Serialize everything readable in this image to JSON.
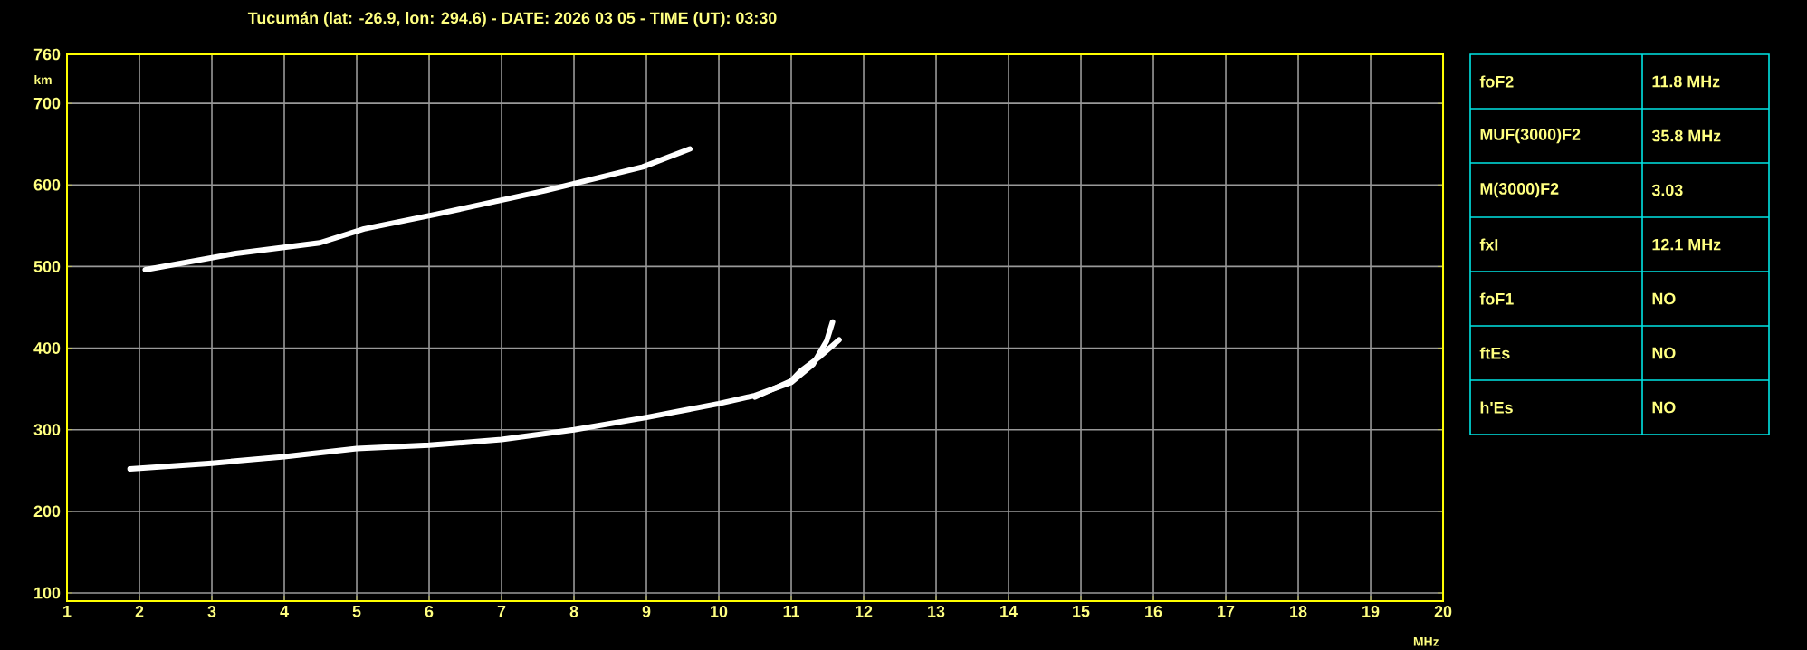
{
  "chart_data": [
    {
      "type": "line",
      "title": "Tucumán (lat: -26.9, lon: 294.6) - DATE: 2026 03 05 - TIME (UT): 03:30",
      "xlabel": "MHz",
      "ylabel": "km",
      "xlim": [
        1,
        20
      ],
      "ylim": [
        90,
        760
      ],
      "xticks": [
        1,
        2,
        3,
        4,
        5,
        6,
        7,
        8,
        9,
        10,
        11,
        12,
        13,
        14,
        15,
        16,
        17,
        18,
        19,
        20
      ],
      "yticks": [
        100,
        200,
        300,
        400,
        500,
        600,
        700,
        760
      ],
      "grid": true,
      "marker": "none",
      "line_style": "solid",
      "series": [
        {
          "color": "#ffffff",
          "x": [
            1.87,
            3,
            4,
            5,
            6,
            7,
            8,
            9,
            10,
            10.5,
            11,
            11.3,
            11.49,
            11.57
          ],
          "values": [
            252,
            259,
            267,
            277,
            281,
            288,
            300,
            315,
            332,
            342,
            358,
            380,
            409,
            432
          ]
        },
        {
          "color": "#ffffff",
          "x": [
            10.5,
            11,
            11.13,
            11.4,
            11.66
          ],
          "values": [
            340,
            360,
            372,
            390,
            410
          ]
        },
        {
          "color": "#ffffff",
          "x": [
            2.08,
            3.33,
            4.49,
            5.1,
            6.1,
            7.6,
            8.95,
            9.6
          ],
          "values": [
            496,
            516,
            529,
            546,
            564,
            593,
            622,
            644
          ]
        }
      ]
    },
    {
      "type": "other",
      "annotations": [
        "foF2",
        "11.8 MHz",
        "MUF(3000)F2",
        "35.8 MHz",
        "M(3000)F2",
        "3.03",
        "fxI",
        "12.1 MHz",
        "foF1",
        "NO",
        "ftEs",
        "NO",
        "h'Es",
        "NO"
      ]
    }
  ]
}
